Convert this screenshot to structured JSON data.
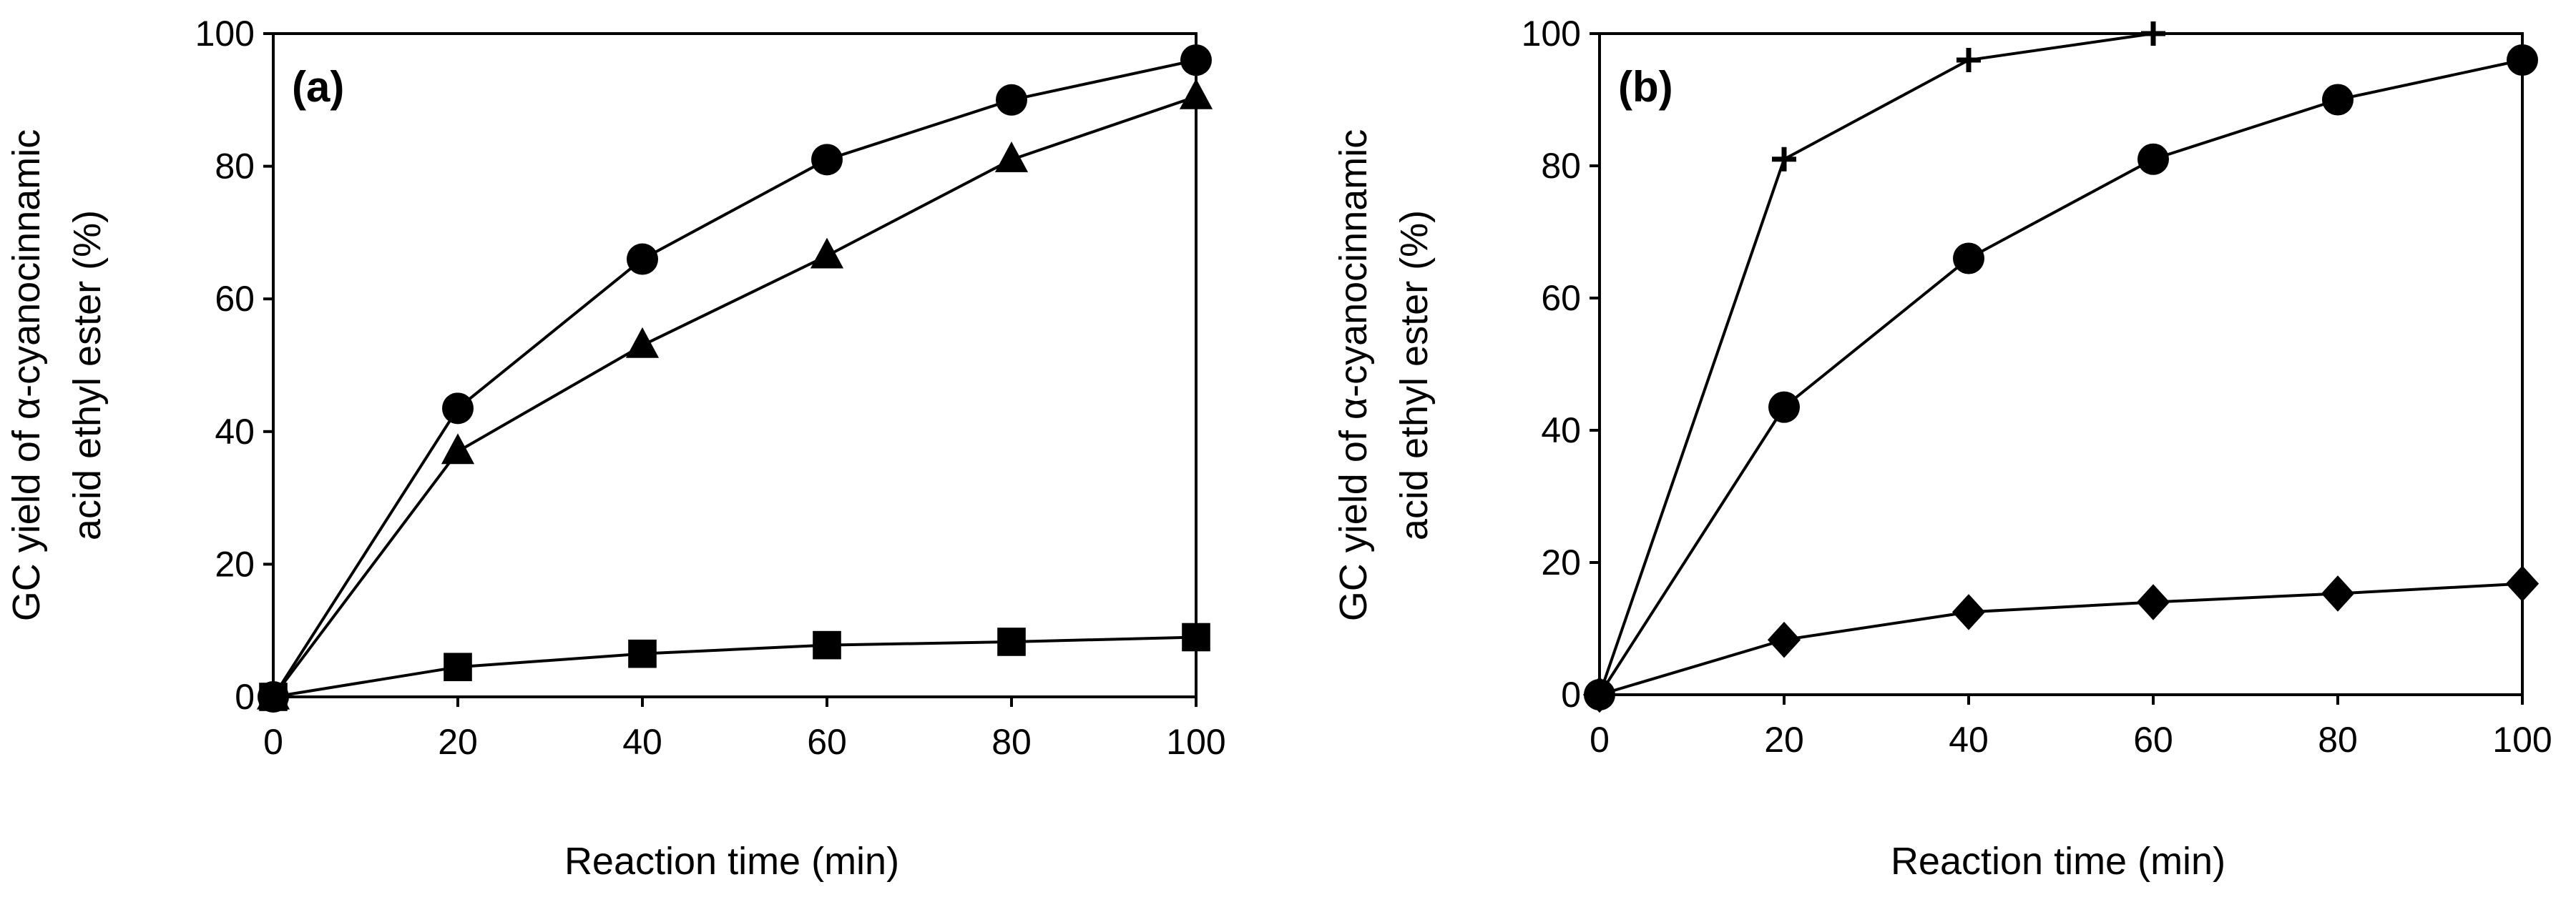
{
  "chart_data": [
    {
      "type": "line",
      "title": "(a)",
      "xlabel": "Reaction time (min)",
      "ylabel_line1": "GC yield of α-cyanocinnamic",
      "ylabel_line2": "acid ethyl ester (%)",
      "xlim": [
        0,
        100
      ],
      "ylim": [
        0,
        100
      ],
      "xticks": [
        0,
        20,
        40,
        60,
        80,
        100
      ],
      "yticks": [
        0,
        20,
        40,
        60,
        80,
        100
      ],
      "x": [
        0,
        20,
        40,
        60,
        80,
        100
      ],
      "series": [
        {
          "name": "circle",
          "marker": "circle",
          "values": [
            0,
            43.5,
            66,
            81,
            90,
            96
          ]
        },
        {
          "name": "triangle",
          "marker": "triangle",
          "values": [
            0,
            37,
            53,
            66.5,
            81,
            90.5
          ]
        },
        {
          "name": "square",
          "marker": "square",
          "values": [
            0,
            4.5,
            6.5,
            7.8,
            8.3,
            9
          ]
        }
      ]
    },
    {
      "type": "line",
      "title": "(b)",
      "xlabel": "Reaction time (min)",
      "ylabel_line1": "GC yield of α-cyanocinnamic",
      "ylabel_line2": "acid ethyl ester (%)",
      "xlim": [
        0,
        100
      ],
      "ylim": [
        0,
        100
      ],
      "xticks": [
        0,
        20,
        40,
        60,
        80,
        100
      ],
      "yticks": [
        0,
        20,
        40,
        60,
        80,
        100
      ],
      "series": [
        {
          "name": "plus",
          "marker": "plus",
          "x": [
            0,
            20,
            40,
            60
          ],
          "values": [
            0,
            81,
            96,
            100
          ]
        },
        {
          "name": "circle",
          "marker": "circle",
          "x": [
            0,
            20,
            40,
            60,
            80,
            100
          ],
          "values": [
            0,
            43.5,
            66,
            81,
            90,
            96
          ]
        },
        {
          "name": "diamond",
          "marker": "diamond",
          "x": [
            0,
            20,
            40,
            60,
            80,
            100
          ],
          "values": [
            0,
            8.3,
            12.5,
            14,
            15.3,
            16.8
          ]
        }
      ]
    }
  ]
}
